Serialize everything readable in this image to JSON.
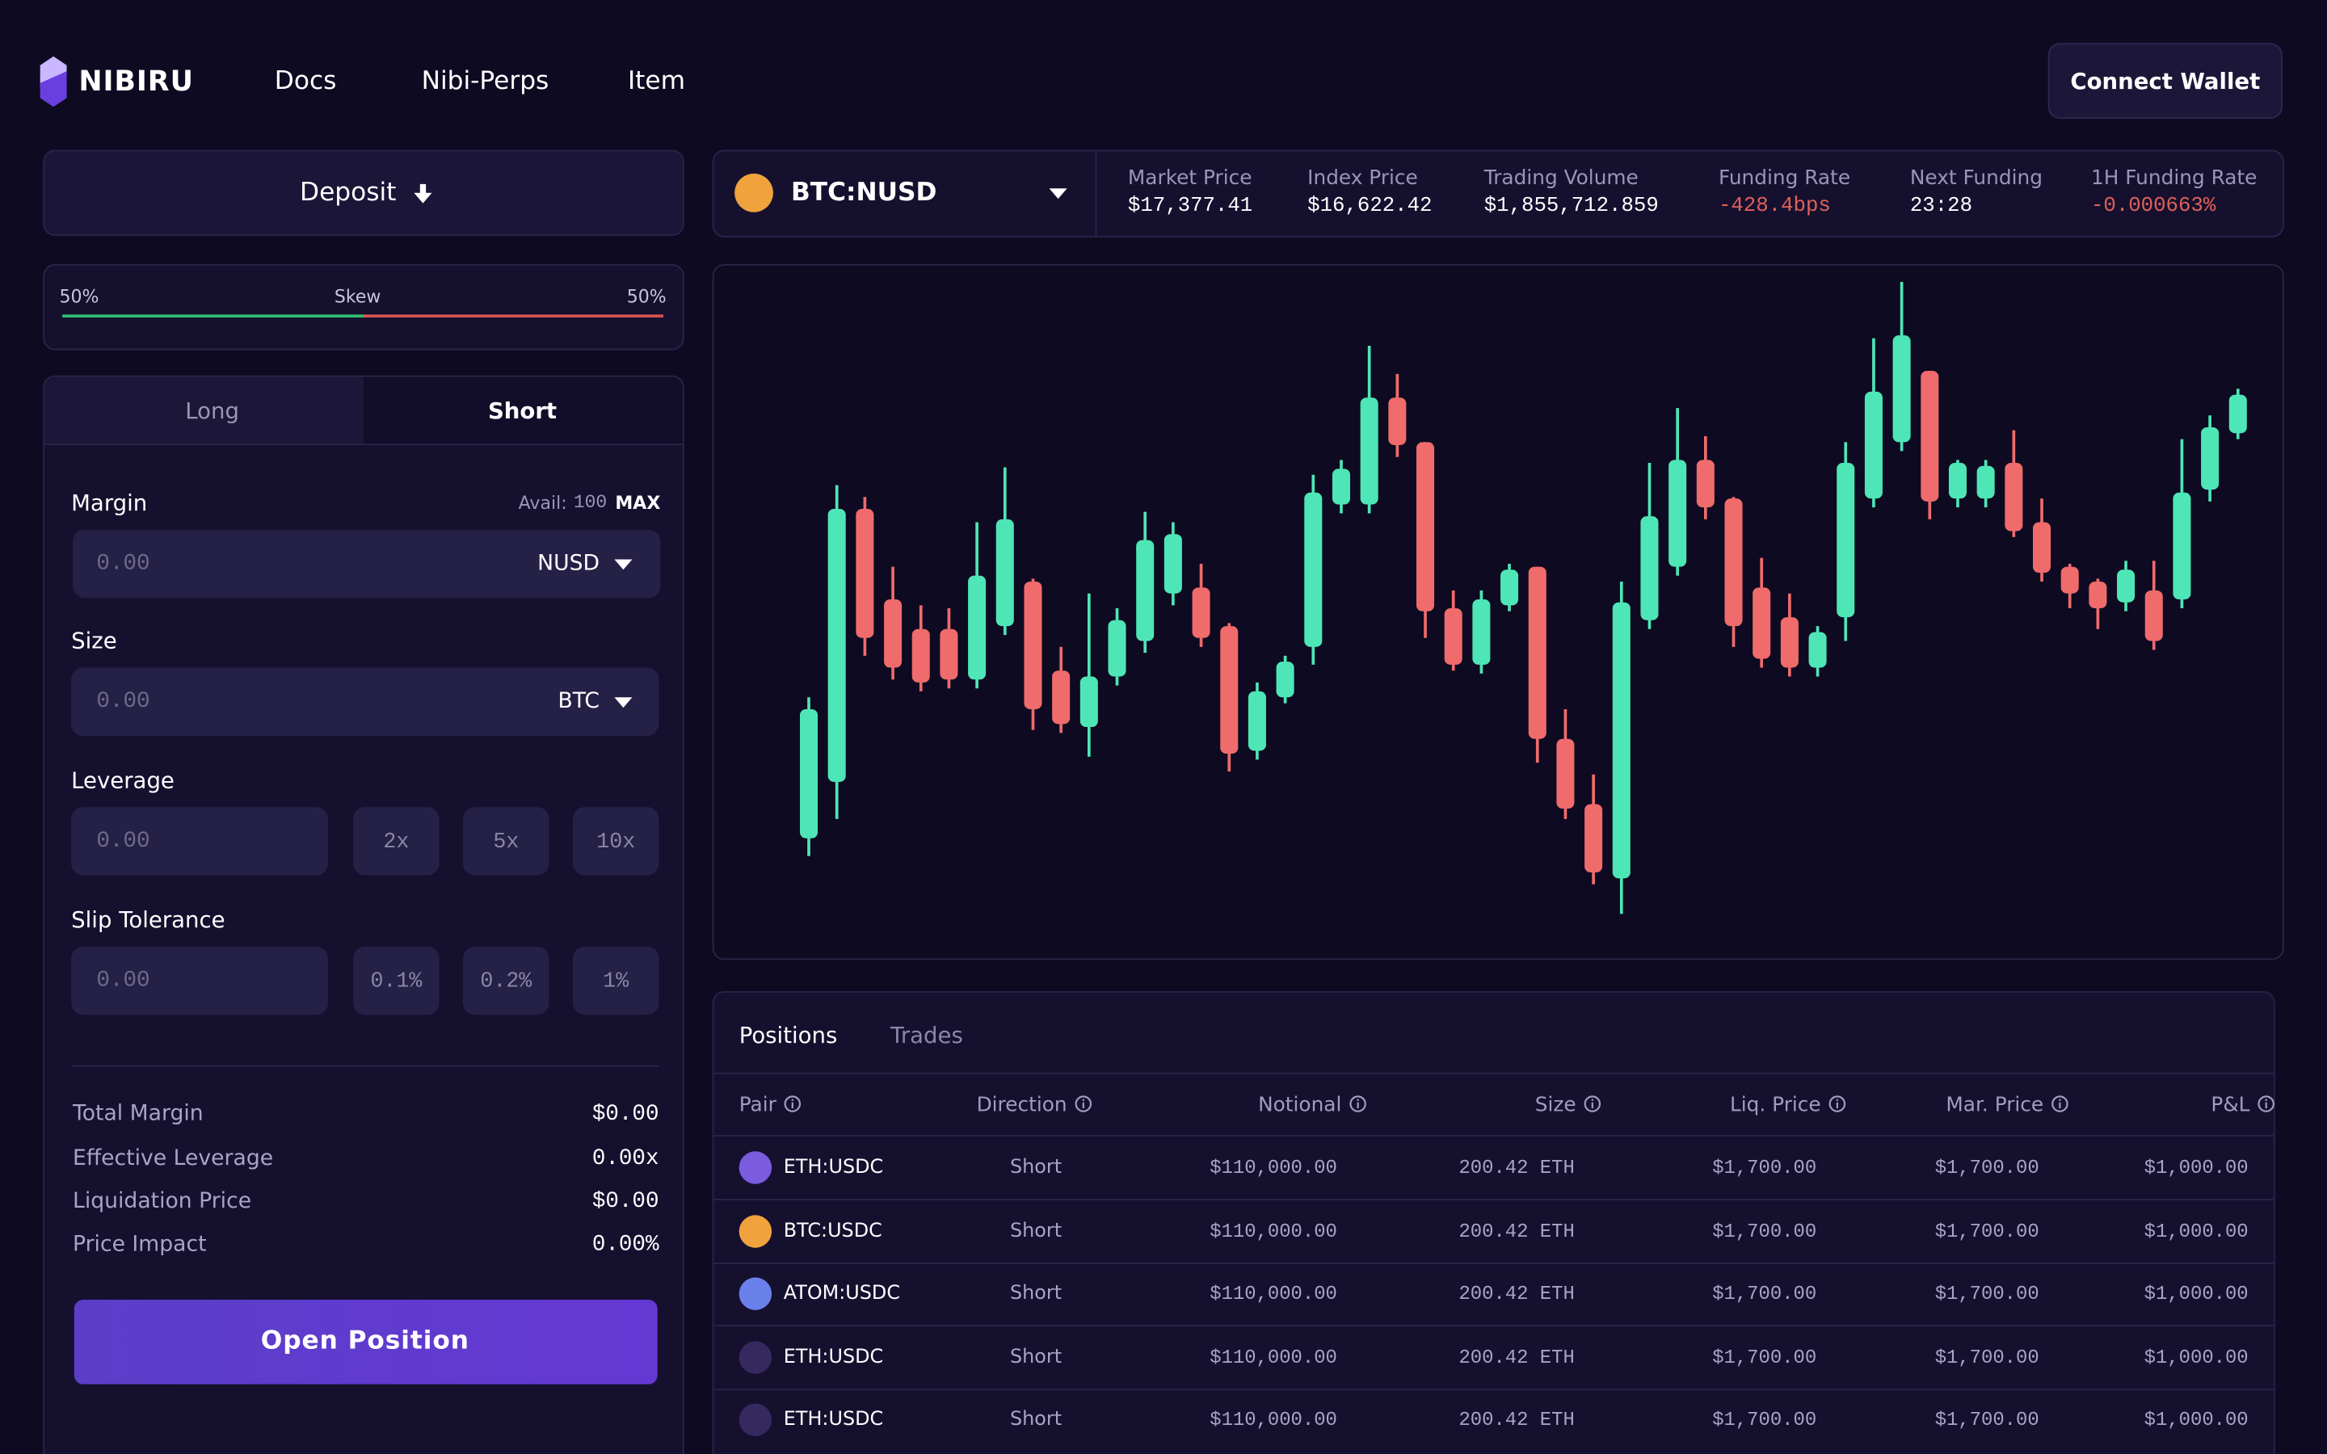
{
  "nav": {
    "brand": "NIBIRU",
    "links": [
      "Docs",
      "Nibi-Perps",
      "Item"
    ],
    "wallet": "Connect Wallet"
  },
  "deposit": "Deposit",
  "skew": {
    "left": "50%",
    "label": "Skew",
    "right": "50%"
  },
  "trade": {
    "tabs": [
      "Long",
      "Short"
    ],
    "margin": {
      "label": "Margin",
      "avail_label": "Avail:",
      "avail": 100,
      "max": "MAX",
      "placeholder": "0.00",
      "unit": "NUSD"
    },
    "size": {
      "label": "Size",
      "placeholder": "0.00",
      "unit": "BTC"
    },
    "leverage": {
      "label": "Leverage",
      "placeholder": "0.00",
      "options": [
        "2x",
        "5x",
        "10x"
      ]
    },
    "slip": {
      "label": "Slip Tolerance",
      "placeholder": "0.00",
      "options": [
        "0.1%",
        "0.2%",
        "1%"
      ]
    },
    "summary": [
      {
        "label": "Total Margin",
        "value": "$0.00"
      },
      {
        "label": "Effective Leverage",
        "value": "0.00x"
      },
      {
        "label": "Liquidation Price",
        "value": "$0.00"
      },
      {
        "label": "Price Impact",
        "value": "0.00%"
      }
    ],
    "button": "Open Position"
  },
  "market": {
    "pair": "BTC:NUSD",
    "pair_color": "#f0a23c",
    "stats": [
      {
        "label": "Market Price",
        "value": "$17,377.41",
        "color": "#ffffff"
      },
      {
        "label": "Index Price",
        "value": "$16,622.42",
        "color": "#ffffff"
      },
      {
        "label": "Trading Volume",
        "value": "$1,855,712.859",
        "color": "#ffffff"
      },
      {
        "label": "Funding Rate",
        "value": "-428.4bps",
        "color": "#e0605a"
      },
      {
        "label": "Next Funding",
        "value": "23:28",
        "color": "#ffffff"
      },
      {
        "label": "1H Funding Rate",
        "value": "-0.000663%",
        "color": "#e0605a"
      }
    ]
  },
  "chart_data": {
    "type": "candlestick",
    "ylim": [
      0,
      460
    ],
    "up_color": "#4ee6b6",
    "down_color": "#f06b6b",
    "open": [
      75,
      113,
      297,
      236,
      216,
      216,
      182,
      218,
      248,
      188,
      150,
      184,
      208,
      240,
      244,
      218,
      134,
      170,
      204,
      300,
      300,
      372,
      342,
      230,
      192,
      232,
      258,
      142,
      98,
      48,
      222,
      258,
      330,
      304,
      244,
      224,
      190,
      224,
      304,
      342,
      390,
      304,
      304,
      328,
      288,
      258,
      248,
      234,
      242,
      236,
      310,
      348
    ],
    "high": [
      170,
      313,
      305,
      258,
      232,
      230,
      288,
      325,
      250,
      204,
      240,
      230,
      295,
      288,
      260,
      220,
      180,
      198,
      320,
      330,
      407,
      388,
      342,
      242,
      242,
      260,
      258,
      162,
      118,
      248,
      328,
      365,
      346,
      305,
      264,
      240,
      218,
      342,
      412,
      450,
      390,
      330,
      330,
      350,
      304,
      260,
      250,
      262,
      262,
      344,
      360,
      378
    ],
    "low": [
      63,
      88,
      198,
      182,
      174,
      176,
      176,
      212,
      148,
      146,
      130,
      178,
      200,
      232,
      204,
      120,
      128,
      166,
      192,
      294,
      294,
      332,
      210,
      188,
      186,
      228,
      126,
      88,
      44,
      24,
      216,
      252,
      290,
      204,
      190,
      184,
      184,
      208,
      298,
      336,
      290,
      298,
      298,
      278,
      248,
      230,
      216,
      228,
      202,
      230,
      302,
      344
    ],
    "close": [
      162,
      297,
      210,
      190,
      180,
      182,
      252,
      290,
      162,
      152,
      184,
      222,
      276,
      280,
      210,
      132,
      174,
      194,
      308,
      324,
      372,
      340,
      228,
      192,
      236,
      256,
      142,
      95,
      52,
      234,
      292,
      330,
      298,
      218,
      196,
      190,
      214,
      328,
      376,
      414,
      302,
      328,
      326,
      282,
      254,
      240,
      230,
      256,
      208,
      308,
      352,
      374
    ]
  },
  "table": {
    "tabs": [
      "Positions",
      "Trades"
    ],
    "columns": [
      "Pair",
      "Direction",
      "Notional",
      "Size",
      "Liq. Price",
      "Mar. Price",
      "P&L"
    ],
    "rows": [
      {
        "pair": "ETH:USDC",
        "color": "#7b5cdf",
        "cells": [
          "Short",
          "$110,000.00",
          "200.42 ETH",
          "$1,700.00",
          "$1,700.00",
          "$1,000.00"
        ]
      },
      {
        "pair": "BTC:USDC",
        "color": "#f0a23c",
        "cells": [
          "Short",
          "$110,000.00",
          "200.42 ETH",
          "$1,700.00",
          "$1,700.00",
          "$1,000.00"
        ]
      },
      {
        "pair": "ATOM:USDC",
        "color": "#6a80ea",
        "cells": [
          "Short",
          "$110,000.00",
          "200.42 ETH",
          "$1,700.00",
          "$1,700.00",
          "$1,000.00"
        ]
      },
      {
        "pair": "ETH:USDC",
        "color": "#35295f",
        "cells": [
          "Short",
          "$110,000.00",
          "200.42 ETH",
          "$1,700.00",
          "$1,700.00",
          "$1,000.00"
        ]
      },
      {
        "pair": "ETH:USDC",
        "color": "#35295f",
        "cells": [
          "Short",
          "$110,000.00",
          "200.42 ETH",
          "$1,700.00",
          "$1,700.00",
          "$1,000.00"
        ]
      }
    ]
  }
}
